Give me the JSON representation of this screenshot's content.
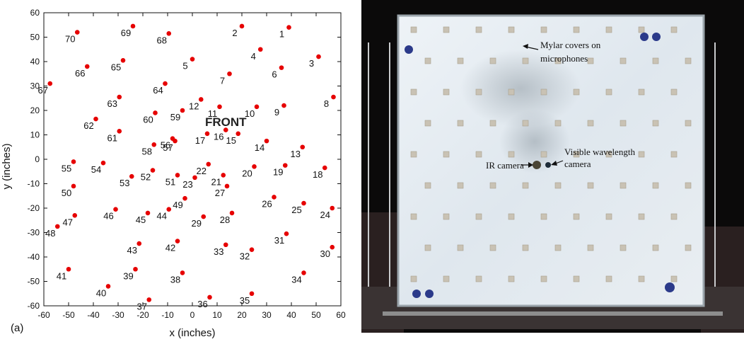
{
  "chart_data": {
    "type": "scatter",
    "xlabel": "x (inches)",
    "ylabel": "y (inches)",
    "xlim": [
      -60,
      60
    ],
    "ylim": [
      -60,
      60
    ],
    "xticks": [
      -60,
      -50,
      -40,
      -30,
      -20,
      -10,
      0,
      10,
      20,
      30,
      40,
      50,
      60
    ],
    "yticks": [
      -60,
      -50,
      -40,
      -30,
      -20,
      -10,
      0,
      10,
      20,
      30,
      40,
      50,
      60
    ],
    "grid": false,
    "marker_color": "#e60000",
    "panel_label": "(a)",
    "annotation": "FRONT",
    "points": [
      {
        "id": "1",
        "x": 39,
        "y": 54
      },
      {
        "id": "2",
        "x": 20,
        "y": 54.5
      },
      {
        "id": "3",
        "x": 51,
        "y": 42
      },
      {
        "id": "4",
        "x": 27.5,
        "y": 45
      },
      {
        "id": "5",
        "x": 0,
        "y": 41
      },
      {
        "id": "6",
        "x": 36,
        "y": 37.5
      },
      {
        "id": "7",
        "x": 15,
        "y": 35
      },
      {
        "id": "8",
        "x": 57,
        "y": 25.5
      },
      {
        "id": "9",
        "x": 37,
        "y": 22
      },
      {
        "id": "10",
        "x": 26,
        "y": 21.5
      },
      {
        "id": "11",
        "x": 11,
        "y": 21.5
      },
      {
        "id": "12",
        "x": 3.5,
        "y": 24.5
      },
      {
        "id": "13",
        "x": 44.5,
        "y": 5
      },
      {
        "id": "14",
        "x": 30,
        "y": 7.5
      },
      {
        "id": "15",
        "x": 18.5,
        "y": 10.5
      },
      {
        "id": "16",
        "x": 13.5,
        "y": 12
      },
      {
        "id": "17",
        "x": 6,
        "y": 10.5
      },
      {
        "id": "18",
        "x": 53.5,
        "y": -3.5
      },
      {
        "id": "19",
        "x": 37.5,
        "y": -2.5
      },
      {
        "id": "20",
        "x": 25,
        "y": -3
      },
      {
        "id": "21",
        "x": 12.5,
        "y": -6.5
      },
      {
        "id": "22",
        "x": 6.5,
        "y": -2
      },
      {
        "id": "23",
        "x": 1,
        "y": -7.5
      },
      {
        "id": "24",
        "x": 56.5,
        "y": -20
      },
      {
        "id": "25",
        "x": 45,
        "y": -18
      },
      {
        "id": "26",
        "x": 33,
        "y": -15.5
      },
      {
        "id": "27",
        "x": 14,
        "y": -11
      },
      {
        "id": "28",
        "x": 16,
        "y": -22
      },
      {
        "id": "29",
        "x": 4.5,
        "y": -23.5
      },
      {
        "id": "30",
        "x": 56.5,
        "y": -36
      },
      {
        "id": "31",
        "x": 38,
        "y": -30.5
      },
      {
        "id": "32",
        "x": 24,
        "y": -37
      },
      {
        "id": "33",
        "x": 13.5,
        "y": -35
      },
      {
        "id": "34",
        "x": 45,
        "y": -46.5
      },
      {
        "id": "35",
        "x": 24,
        "y": -55
      },
      {
        "id": "36",
        "x": 7,
        "y": -56.5
      },
      {
        "id": "37",
        "x": -17.5,
        "y": -57.5
      },
      {
        "id": "38",
        "x": -4,
        "y": -46.5
      },
      {
        "id": "39",
        "x": -23,
        "y": -45
      },
      {
        "id": "40",
        "x": -34,
        "y": -52
      },
      {
        "id": "41",
        "x": -50,
        "y": -45
      },
      {
        "id": "42",
        "x": -6,
        "y": -33.5
      },
      {
        "id": "43",
        "x": -21.5,
        "y": -34.5
      },
      {
        "id": "44",
        "x": -9.5,
        "y": -20.5
      },
      {
        "id": "45",
        "x": -18,
        "y": -22
      },
      {
        "id": "46",
        "x": -31,
        "y": -20.5
      },
      {
        "id": "47",
        "x": -47.5,
        "y": -23
      },
      {
        "id": "48",
        "x": -54.5,
        "y": -27.5
      },
      {
        "id": "49",
        "x": -3,
        "y": -16
      },
      {
        "id": "50",
        "x": -48,
        "y": -11
      },
      {
        "id": "51",
        "x": -6,
        "y": -6.5
      },
      {
        "id": "52",
        "x": -16,
        "y": -4.5
      },
      {
        "id": "53",
        "x": -24.5,
        "y": -7
      },
      {
        "id": "54",
        "x": -36,
        "y": -1.5
      },
      {
        "id": "55",
        "x": -48,
        "y": -1
      },
      {
        "id": "56",
        "x": -8,
        "y": 8.5
      },
      {
        "id": "57",
        "x": -7,
        "y": 7.5
      },
      {
        "id": "58",
        "x": -15.5,
        "y": 6
      },
      {
        "id": "59",
        "x": -4,
        "y": 20
      },
      {
        "id": "60",
        "x": -15,
        "y": 19
      },
      {
        "id": "61",
        "x": -29.5,
        "y": 11.5
      },
      {
        "id": "62",
        "x": -39,
        "y": 16.5
      },
      {
        "id": "63",
        "x": -29.5,
        "y": 25.5
      },
      {
        "id": "64",
        "x": -11,
        "y": 31
      },
      {
        "id": "65",
        "x": -28,
        "y": 40.5
      },
      {
        "id": "66",
        "x": -42.5,
        "y": 38
      },
      {
        "id": "67",
        "x": -57.5,
        "y": 31
      },
      {
        "id": "68",
        "x": -9.5,
        "y": 51.5
      },
      {
        "id": "69",
        "x": -24,
        "y": 54.5
      },
      {
        "id": "70",
        "x": -46.5,
        "y": 52
      }
    ]
  },
  "photo": {
    "labels": {
      "mylar": [
        "Mylar covers on",
        "microphones"
      ],
      "ir_camera": "IR camera",
      "visible_camera": [
        "Visible wavelength",
        "camera"
      ]
    }
  }
}
